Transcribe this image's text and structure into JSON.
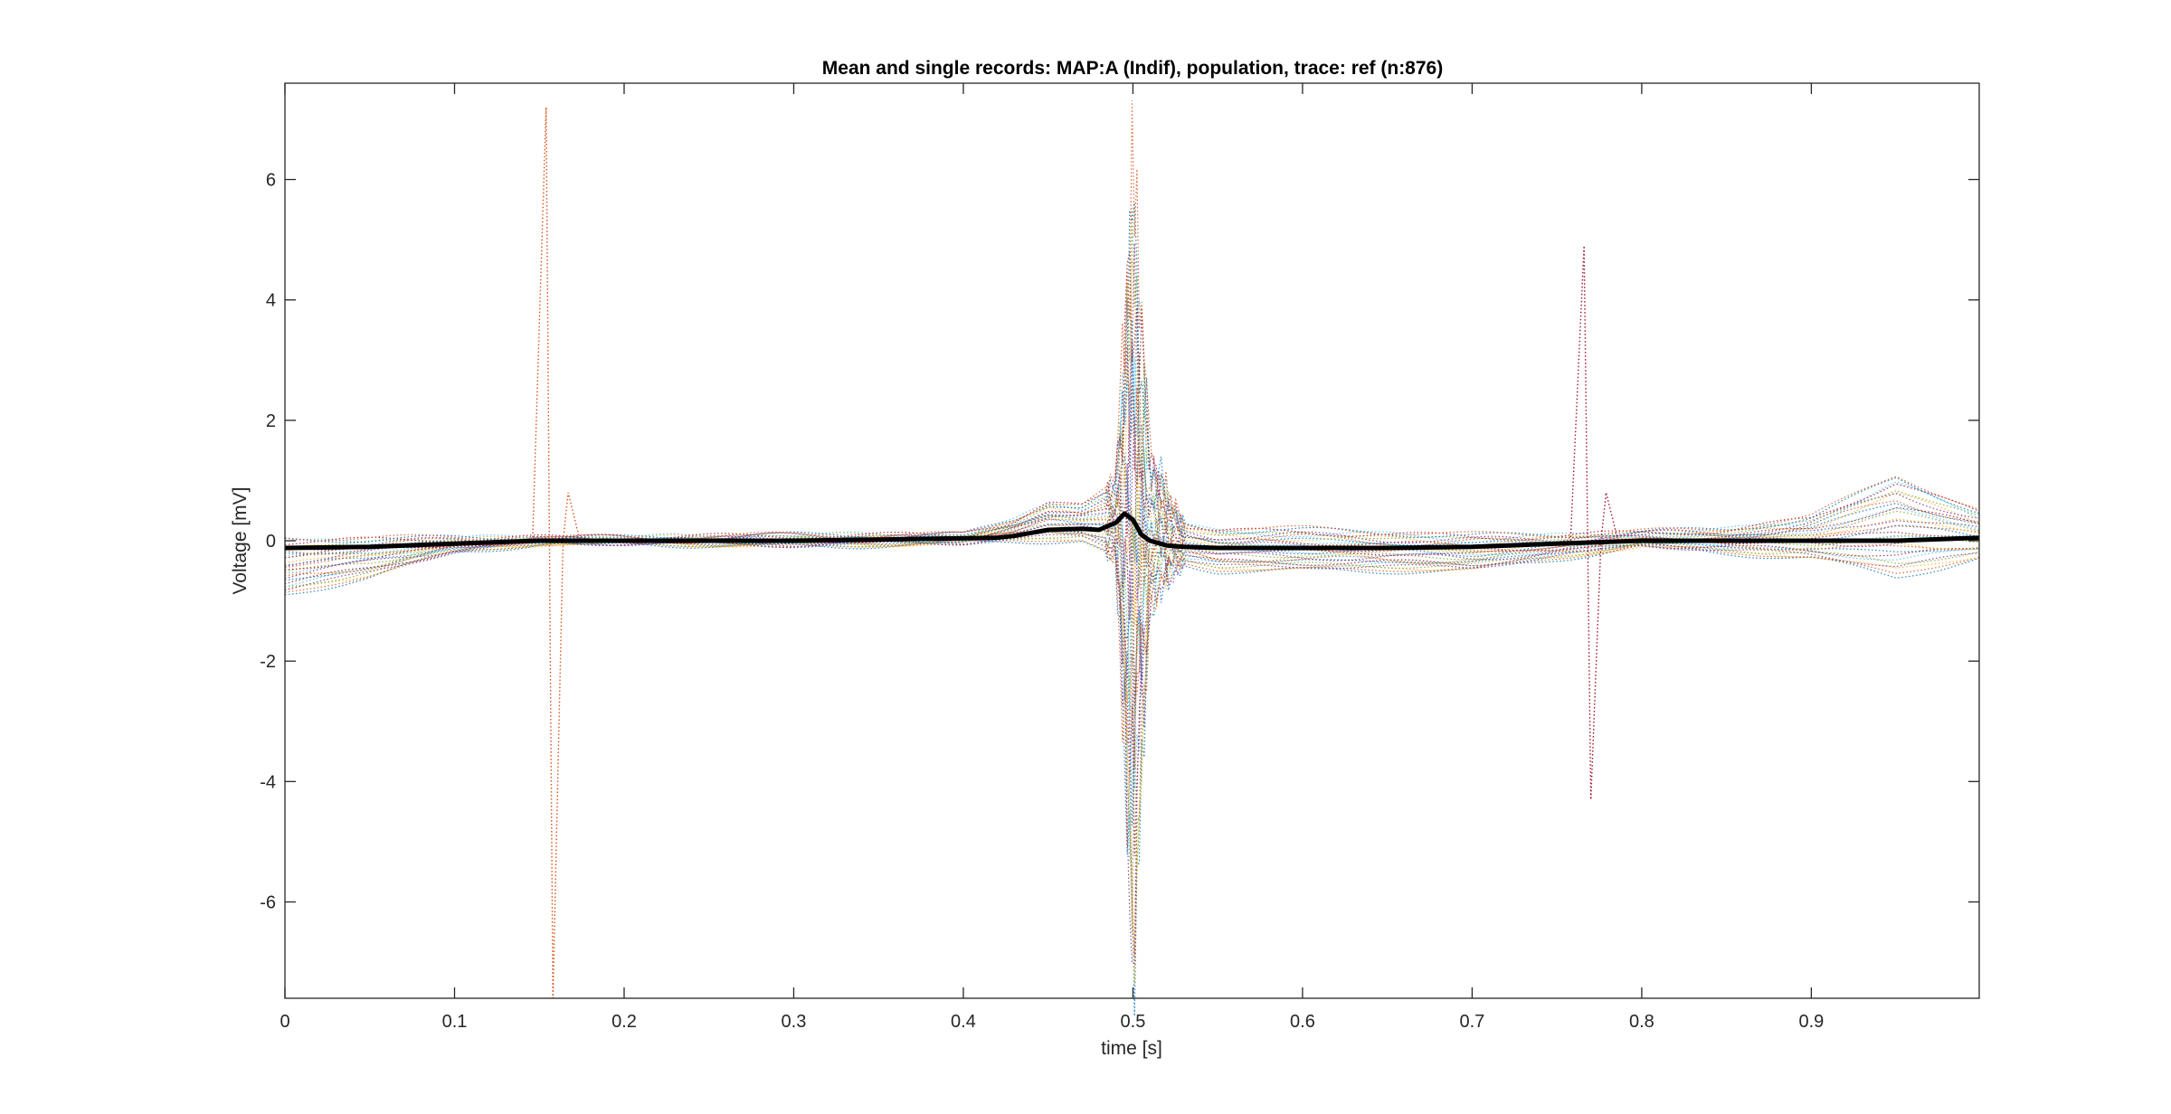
{
  "chart_data": {
    "type": "line",
    "title": "Mean and single records: MAP:A (Indif), population, trace: ref (n:876)",
    "xlabel": "time [s]",
    "ylabel": "Voltage [mV]",
    "xlim": [
      0,
      0.999
    ],
    "ylim": [
      -7.6,
      7.6
    ],
    "xticks": [
      0,
      0.1,
      0.2,
      0.3,
      0.4,
      0.5,
      0.6,
      0.7,
      0.8,
      0.9
    ],
    "xtick_labels": [
      "0",
      "0.1",
      "0.2",
      "0.3",
      "0.4",
      "0.5",
      "0.6",
      "0.7",
      "0.8",
      "0.9"
    ],
    "yticks": [
      -6,
      -4,
      -2,
      0,
      2,
      4,
      6
    ],
    "ytick_labels": [
      "-6",
      "-4",
      "-2",
      "0",
      "2",
      "4",
      "6"
    ],
    "grid": false,
    "box": true,
    "series": [
      {
        "role": "mean",
        "style": "solid",
        "color": "#000000",
        "x": [
          0,
          0.05,
          0.1,
          0.15,
          0.2,
          0.25,
          0.3,
          0.35,
          0.4,
          0.42,
          0.43,
          0.45,
          0.47,
          0.48,
          0.49,
          0.495,
          0.5,
          0.505,
          0.51,
          0.52,
          0.53,
          0.55,
          0.6,
          0.65,
          0.7,
          0.75,
          0.8,
          0.85,
          0.9,
          0.95,
          0.999
        ],
        "y": [
          -0.12,
          -0.1,
          -0.05,
          0,
          0,
          0,
          0,
          0.02,
          0.04,
          0.05,
          0.08,
          0.18,
          0.2,
          0.18,
          0.3,
          0.45,
          0.35,
          0.1,
          0,
          -0.08,
          -0.1,
          -0.12,
          -0.12,
          -0.12,
          -0.1,
          -0.05,
          0,
          0,
          0,
          0,
          0.05
        ]
      },
      {
        "role": "single-records",
        "style": "dotted",
        "count_drawn_approx": 30,
        "colors": [
          "#0072BD",
          "#D95319",
          "#EDB120",
          "#7E2F8E",
          "#77AC30",
          "#4DBEEE",
          "#A2142F"
        ],
        "envelope": {
          "x": [
            0,
            0.05,
            0.1,
            0.15,
            0.2,
            0.3,
            0.4,
            0.43,
            0.45,
            0.47,
            0.49,
            0.5,
            0.51,
            0.53,
            0.55,
            0.6,
            0.7,
            0.75,
            0.8,
            0.85,
            0.9,
            0.95,
            0.999
          ],
          "upper": [
            0.05,
            0.05,
            0.05,
            0.05,
            0.05,
            0.1,
            0.1,
            0.35,
            0.65,
            0.6,
            0.95,
            5.5,
            1.5,
            0.3,
            0.2,
            0.2,
            0.1,
            0.1,
            0.15,
            0.2,
            0.4,
            1.1,
            0.5
          ],
          "lower": [
            -0.9,
            -0.6,
            -0.2,
            -0.05,
            -0.05,
            -0.1,
            -0.05,
            0,
            0,
            0,
            -0.3,
            -6.8,
            -1.0,
            -0.4,
            -0.5,
            -0.5,
            -0.5,
            -0.3,
            -0.1,
            -0.2,
            -0.3,
            -0.6,
            -0.3
          ]
        },
        "outlier_spikes": [
          {
            "x": 0.154,
            "y": [
              7.2,
              -7.6
            ],
            "color": "#D95319"
          },
          {
            "x": 0.766,
            "y": [
              4.9,
              -4.3
            ],
            "color": "#A2142F"
          }
        ]
      }
    ]
  }
}
